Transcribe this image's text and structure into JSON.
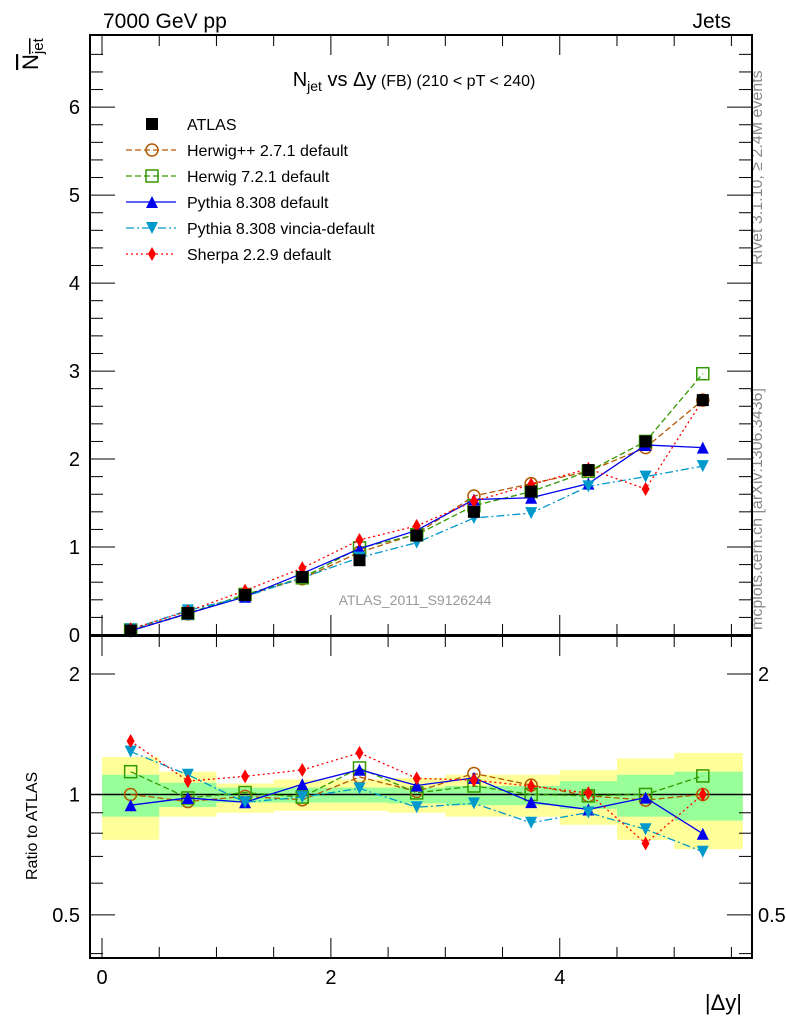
{
  "header": {
    "energy_label": "7000 GeV pp",
    "category_label": "Jets",
    "rivet_label": "Rivet 3.1.10, ≥ 2.4M events",
    "mcplots_label": "mcplots.cern.ch [arXiv:1306.3436]",
    "analysis_label": "ATLAS_2011_S9126244"
  },
  "chart_data": {
    "type": "line",
    "title_main": "N",
    "title_sub": "jet",
    "title_rest": " vs Δy",
    "title_small": " (FB) (210 < pT < 240)",
    "ylabel": "N",
    "ylabel_sub": "jet",
    "ratio_ylabel": "Ratio to ATLAS",
    "xlabel": "|Δy|",
    "xlim": [
      -0.105,
      5.68
    ],
    "ylim": [
      0,
      6.82
    ],
    "ratio_ylim": [
      0.39,
      2.49
    ],
    "x_ticks": [
      "0",
      "2",
      "4"
    ],
    "y_ticks": [
      "0",
      "1",
      "2",
      "3",
      "4",
      "5",
      "6"
    ],
    "ratio_ticks": [
      "0.5",
      "1",
      "2"
    ],
    "bin_edges": [
      0,
      0.5,
      1,
      1.5,
      2,
      2.5,
      3,
      3.5,
      4,
      4.5,
      5,
      5.6
    ],
    "x": [
      0.25,
      0.75,
      1.25,
      1.75,
      2.25,
      2.75,
      3.25,
      3.75,
      4.25,
      4.75,
      5.25
    ],
    "data": {
      "name": "ATLAS",
      "values": [
        0.05,
        0.25,
        0.455,
        0.66,
        0.85,
        1.13,
        1.4,
        1.63,
        1.875,
        2.2,
        2.67
      ]
    },
    "band_inner": [
      [
        0.88,
        1.12
      ],
      [
        0.93,
        1.07
      ],
      [
        0.955,
        1.04
      ],
      [
        0.955,
        1.04
      ],
      [
        0.955,
        1.04
      ],
      [
        0.95,
        1.04
      ],
      [
        0.94,
        1.05
      ],
      [
        0.94,
        1.05
      ],
      [
        0.92,
        1.08
      ],
      [
        0.88,
        1.12
      ],
      [
        0.86,
        1.14
      ]
    ],
    "band_outer": [
      [
        0.77,
        1.24
      ],
      [
        0.88,
        1.14
      ],
      [
        0.9,
        1.065
      ],
      [
        0.91,
        1.09
      ],
      [
        0.91,
        1.09
      ],
      [
        0.9,
        1.1
      ],
      [
        0.88,
        1.12
      ],
      [
        0.88,
        1.12
      ],
      [
        0.84,
        1.15
      ],
      [
        0.77,
        1.23
      ],
      [
        0.73,
        1.27
      ]
    ],
    "series": [
      {
        "name": "Herwig++ 2.7.1 default",
        "color": "#b35900",
        "marker": "circle",
        "dash": "6,3",
        "values": [
          0.05,
          0.24,
          0.45,
          0.64,
          0.94,
          1.15,
          1.58,
          1.72,
          1.86,
          2.13,
          2.67
        ]
      },
      {
        "name": "Herwig 7.2.1 default",
        "color": "#339900",
        "marker": "square",
        "dash": "6,3",
        "values": [
          0.057,
          0.245,
          0.46,
          0.65,
          0.99,
          1.14,
          1.47,
          1.63,
          1.86,
          2.2,
          2.97
        ]
      },
      {
        "name": "Pythia 8.308 default",
        "color": "#0000ee",
        "marker": "triangle-up",
        "dash": "",
        "values": [
          0.047,
          0.245,
          0.435,
          0.7,
          0.98,
          1.19,
          1.54,
          1.56,
          1.72,
          2.16,
          2.13
        ]
      },
      {
        "name": "Pythia 8.308 vincia-default",
        "color": "#0099cc",
        "marker": "triangle-down",
        "dash": "8,3,2,3",
        "values": [
          0.064,
          0.28,
          0.435,
          0.65,
          0.88,
          1.05,
          1.33,
          1.385,
          1.69,
          1.8,
          1.92
        ]
      },
      {
        "name": "Sherpa 2.2.9 default",
        "color": "#ff0000",
        "marker": "diamond",
        "dash": "2,3",
        "values": [
          0.068,
          0.27,
          0.505,
          0.76,
          1.08,
          1.24,
          1.52,
          1.71,
          1.89,
          1.66,
          2.67
        ]
      }
    ]
  }
}
